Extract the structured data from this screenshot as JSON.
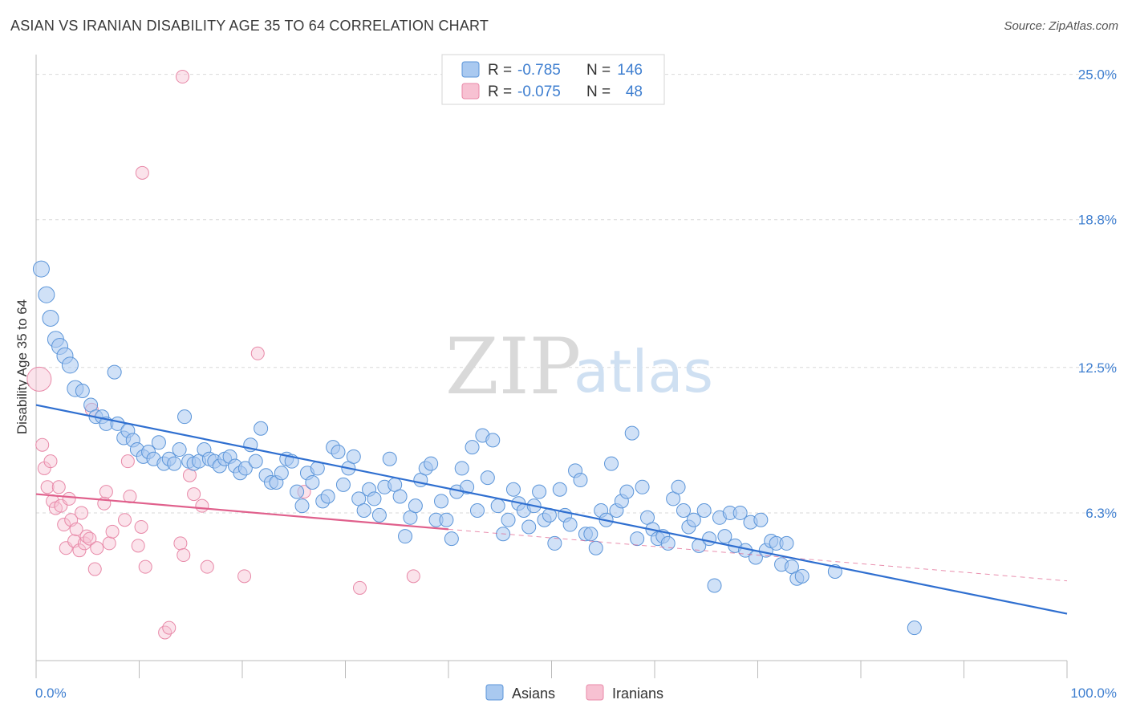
{
  "title": "ASIAN VS IRANIAN DISABILITY AGE 35 TO 64 CORRELATION CHART",
  "source": "Source: ZipAtlas.com",
  "watermark": {
    "zip": "ZIP",
    "atlas": "atlas"
  },
  "legend": {
    "rows": [
      {
        "r_label": "R =",
        "r_value": "-0.785",
        "n_label": "N =",
        "n_value": "146"
      },
      {
        "r_label": "R =",
        "r_value": "-0.075",
        "n_label": "N =",
        "n_value": "48"
      }
    ]
  },
  "bottom_legend": [
    "Asians",
    "Iranians"
  ],
  "colors": {
    "asians_fill": "#a9c9f0",
    "asians_stroke": "#5b95d9",
    "asians_line": "#2f6fd0",
    "iranians_fill": "#f7c1d2",
    "iranians_stroke": "#e889a8",
    "iranians_line": "#e0608c",
    "grid": "#d9d9d9",
    "tick_label": "#3f7fd0"
  },
  "chart_data": {
    "type": "scatter",
    "title": "ASIAN VS IRANIAN DISABILITY AGE 35 TO 64 CORRELATION CHART",
    "xlabel": "",
    "ylabel": "Disability Age 35 to 64",
    "xlim": [
      0,
      100
    ],
    "ylim": [
      0,
      25.5
    ],
    "x_tick_labels": [
      "0.0%",
      "100.0%"
    ],
    "y_ticks": [
      6.3,
      12.5,
      18.8,
      25.0
    ],
    "y_tick_labels": [
      "6.3%",
      "12.5%",
      "18.8%",
      "25.0%"
    ],
    "grid": true,
    "legend_position": "top-center",
    "series": [
      {
        "name": "Asians",
        "R": -0.785,
        "N": 146,
        "trend": {
          "x": [
            0,
            100
          ],
          "y": [
            10.9,
            2.0
          ]
        },
        "points": [
          [
            0.5,
            16.7
          ],
          [
            1,
            15.6
          ],
          [
            1.4,
            14.6
          ],
          [
            1.9,
            13.7
          ],
          [
            2.3,
            13.4
          ],
          [
            2.8,
            13.0
          ],
          [
            3.3,
            12.6
          ],
          [
            3.8,
            11.6
          ],
          [
            4.5,
            11.5
          ],
          [
            5.3,
            10.9
          ],
          [
            5.8,
            10.4
          ],
          [
            6.4,
            10.4
          ],
          [
            6.8,
            10.1
          ],
          [
            7.6,
            12.3
          ],
          [
            7.9,
            10.1
          ],
          [
            8.5,
            9.5
          ],
          [
            8.9,
            9.8
          ],
          [
            9.4,
            9.4
          ],
          [
            9.8,
            9.0
          ],
          [
            10.4,
            8.7
          ],
          [
            10.9,
            8.9
          ],
          [
            11.4,
            8.6
          ],
          [
            11.9,
            9.3
          ],
          [
            12.4,
            8.4
          ],
          [
            12.9,
            8.6
          ],
          [
            13.4,
            8.4
          ],
          [
            13.9,
            9.0
          ],
          [
            14.4,
            10.4
          ],
          [
            14.8,
            8.5
          ],
          [
            15.3,
            8.4
          ],
          [
            15.8,
            8.5
          ],
          [
            16.3,
            9.0
          ],
          [
            16.8,
            8.6
          ],
          [
            17.3,
            8.5
          ],
          [
            17.8,
            8.3
          ],
          [
            18.3,
            8.6
          ],
          [
            18.8,
            8.7
          ],
          [
            19.3,
            8.3
          ],
          [
            19.8,
            8.0
          ],
          [
            20.3,
            8.2
          ],
          [
            20.8,
            9.2
          ],
          [
            21.3,
            8.5
          ],
          [
            21.8,
            9.9
          ],
          [
            22.3,
            7.9
          ],
          [
            22.8,
            7.6
          ],
          [
            23.3,
            7.6
          ],
          [
            23.8,
            8.0
          ],
          [
            24.3,
            8.6
          ],
          [
            24.8,
            8.5
          ],
          [
            25.3,
            7.2
          ],
          [
            25.8,
            6.6
          ],
          [
            26.3,
            8.0
          ],
          [
            26.8,
            7.6
          ],
          [
            27.3,
            8.2
          ],
          [
            27.8,
            6.8
          ],
          [
            28.3,
            7.0
          ],
          [
            28.8,
            9.1
          ],
          [
            29.3,
            8.9
          ],
          [
            29.8,
            7.5
          ],
          [
            30.3,
            8.2
          ],
          [
            30.8,
            8.7
          ],
          [
            31.3,
            6.9
          ],
          [
            31.8,
            6.4
          ],
          [
            32.3,
            7.3
          ],
          [
            32.8,
            6.9
          ],
          [
            33.3,
            6.2
          ],
          [
            33.8,
            7.4
          ],
          [
            34.3,
            8.6
          ],
          [
            34.8,
            7.5
          ],
          [
            35.3,
            7.0
          ],
          [
            35.8,
            5.3
          ],
          [
            36.3,
            6.1
          ],
          [
            36.8,
            6.6
          ],
          [
            37.3,
            7.7
          ],
          [
            37.8,
            8.2
          ],
          [
            38.3,
            8.4
          ],
          [
            38.8,
            6.0
          ],
          [
            39.3,
            6.8
          ],
          [
            39.8,
            6.0
          ],
          [
            40.3,
            5.2
          ],
          [
            40.8,
            7.2
          ],
          [
            41.3,
            8.2
          ],
          [
            41.8,
            7.4
          ],
          [
            42.3,
            9.1
          ],
          [
            42.8,
            6.4
          ],
          [
            43.3,
            9.6
          ],
          [
            43.8,
            7.8
          ],
          [
            44.3,
            9.4
          ],
          [
            44.8,
            6.6
          ],
          [
            45.3,
            5.4
          ],
          [
            45.8,
            6.0
          ],
          [
            46.3,
            7.3
          ],
          [
            46.8,
            6.7
          ],
          [
            47.3,
            6.4
          ],
          [
            47.8,
            5.7
          ],
          [
            48.3,
            6.6
          ],
          [
            48.8,
            7.2
          ],
          [
            49.3,
            6.0
          ],
          [
            49.8,
            6.2
          ],
          [
            50.3,
            5.0
          ],
          [
            50.8,
            7.3
          ],
          [
            51.3,
            6.2
          ],
          [
            51.8,
            5.8
          ],
          [
            52.3,
            8.1
          ],
          [
            52.8,
            7.7
          ],
          [
            53.3,
            5.4
          ],
          [
            53.8,
            5.4
          ],
          [
            54.3,
            4.8
          ],
          [
            54.8,
            6.4
          ],
          [
            55.3,
            6.0
          ],
          [
            55.8,
            8.4
          ],
          [
            56.3,
            6.4
          ],
          [
            56.8,
            6.8
          ],
          [
            57.3,
            7.2
          ],
          [
            57.8,
            9.7
          ],
          [
            58.3,
            5.2
          ],
          [
            58.8,
            7.4
          ],
          [
            59.3,
            6.1
          ],
          [
            59.8,
            5.6
          ],
          [
            60.3,
            5.2
          ],
          [
            60.8,
            5.3
          ],
          [
            61.3,
            5.0
          ],
          [
            61.8,
            6.9
          ],
          [
            62.3,
            7.4
          ],
          [
            62.8,
            6.4
          ],
          [
            63.3,
            5.7
          ],
          [
            63.8,
            6.0
          ],
          [
            64.3,
            4.9
          ],
          [
            64.8,
            6.4
          ],
          [
            65.3,
            5.2
          ],
          [
            65.8,
            3.2
          ],
          [
            66.3,
            6.1
          ],
          [
            66.8,
            5.3
          ],
          [
            67.3,
            6.3
          ],
          [
            67.8,
            4.9
          ],
          [
            68.3,
            6.3
          ],
          [
            68.8,
            4.7
          ],
          [
            69.3,
            5.9
          ],
          [
            69.8,
            4.4
          ],
          [
            70.3,
            6.0
          ],
          [
            70.8,
            4.7
          ],
          [
            71.3,
            5.1
          ],
          [
            71.8,
            5.0
          ],
          [
            72.3,
            4.1
          ],
          [
            72.8,
            5.0
          ],
          [
            73.3,
            4.0
          ],
          [
            73.8,
            3.5
          ],
          [
            74.3,
            3.6
          ],
          [
            85.2,
            1.4
          ],
          [
            77.5,
            3.8
          ]
        ]
      },
      {
        "name": "Iranians",
        "R": -0.075,
        "N": 48,
        "trend": {
          "x": [
            0,
            40
          ],
          "y": [
            7.1,
            5.6
          ],
          "dashed_to": [
            100,
            3.4
          ]
        },
        "points": [
          [
            0.3,
            12.0
          ],
          [
            0.6,
            9.2
          ],
          [
            0.8,
            8.2
          ],
          [
            1.1,
            7.4
          ],
          [
            1.4,
            8.5
          ],
          [
            1.6,
            6.8
          ],
          [
            1.9,
            6.5
          ],
          [
            2.2,
            7.4
          ],
          [
            2.4,
            6.6
          ],
          [
            2.7,
            5.8
          ],
          [
            2.9,
            4.8
          ],
          [
            3.2,
            6.9
          ],
          [
            3.4,
            6.0
          ],
          [
            3.7,
            5.1
          ],
          [
            3.9,
            5.6
          ],
          [
            4.2,
            4.7
          ],
          [
            4.4,
            6.3
          ],
          [
            4.7,
            5.0
          ],
          [
            4.9,
            5.3
          ],
          [
            5.2,
            5.2
          ],
          [
            5.4,
            10.7
          ],
          [
            5.7,
            3.9
          ],
          [
            5.9,
            4.8
          ],
          [
            6.6,
            6.7
          ],
          [
            6.8,
            7.2
          ],
          [
            7.1,
            5.0
          ],
          [
            7.4,
            5.5
          ],
          [
            8.6,
            6.0
          ],
          [
            8.9,
            8.5
          ],
          [
            9.1,
            7.0
          ],
          [
            9.9,
            4.9
          ],
          [
            10.2,
            5.7
          ],
          [
            10.6,
            4.0
          ],
          [
            12.5,
            1.2
          ],
          [
            12.9,
            1.4
          ],
          [
            14.0,
            5.0
          ],
          [
            14.3,
            4.5
          ],
          [
            14.9,
            7.9
          ],
          [
            15.3,
            7.1
          ],
          [
            16.1,
            6.6
          ],
          [
            16.6,
            4.0
          ],
          [
            10.3,
            20.8
          ],
          [
            14.2,
            24.9
          ],
          [
            20.2,
            3.6
          ],
          [
            21.5,
            13.1
          ],
          [
            26.0,
            7.2
          ],
          [
            31.4,
            3.1
          ],
          [
            36.6,
            3.6
          ]
        ]
      }
    ]
  }
}
